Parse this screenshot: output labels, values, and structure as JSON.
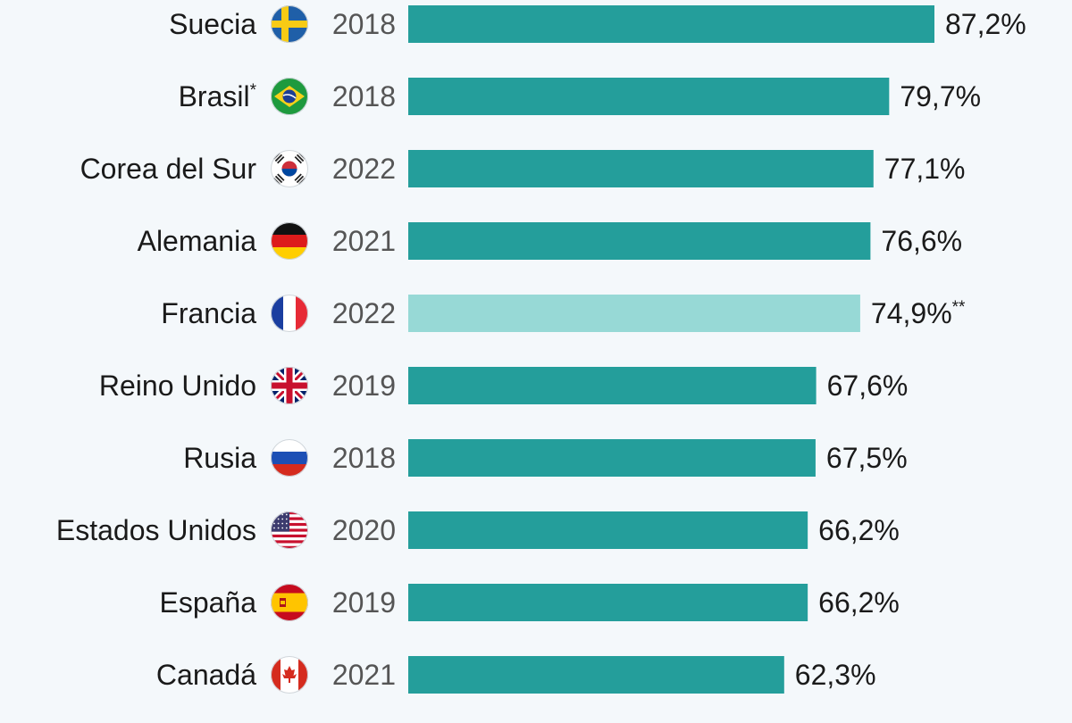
{
  "chart_data": {
    "type": "bar",
    "orientation": "horizontal",
    "categories": [
      "Suecia",
      "Brasil",
      "Corea del Sur",
      "Alemania",
      "Francia",
      "Reino Unido",
      "Rusia",
      "Estados Unidos",
      "España",
      "Canadá"
    ],
    "category_marks": [
      "",
      "*",
      "",
      "",
      "",
      "",
      "",
      "",
      "",
      ""
    ],
    "years": [
      "2018",
      "2018",
      "2022",
      "2021",
      "2022",
      "2019",
      "2018",
      "2020",
      "2019",
      "2021"
    ],
    "values": [
      87.2,
      79.7,
      77.1,
      76.6,
      74.9,
      67.6,
      67.5,
      66.2,
      66.2,
      62.3
    ],
    "value_labels": [
      "87,2%",
      "79,7%",
      "77,1%",
      "76,6%",
      "74,9%",
      "67,6%",
      "67,5%",
      "66,2%",
      "66,2%",
      "62,3%"
    ],
    "value_marks": [
      "",
      "",
      "",
      "",
      "**",
      "",
      "",
      "",
      "",
      ""
    ],
    "highlighted": [
      false,
      false,
      false,
      false,
      true,
      false,
      false,
      false,
      false,
      false
    ],
    "flags": [
      "sweden-flag-icon",
      "brazil-flag-icon",
      "south-korea-flag-icon",
      "germany-flag-icon",
      "france-flag-icon",
      "united-kingdom-flag-icon",
      "russia-flag-icon",
      "united-states-flag-icon",
      "spain-flag-icon",
      "canada-flag-icon"
    ],
    "colors": {
      "bar": "#249e9b",
      "bar_highlight": "#97d9d6"
    },
    "xlim": [
      0,
      100
    ],
    "grid": false,
    "legend": "none"
  }
}
